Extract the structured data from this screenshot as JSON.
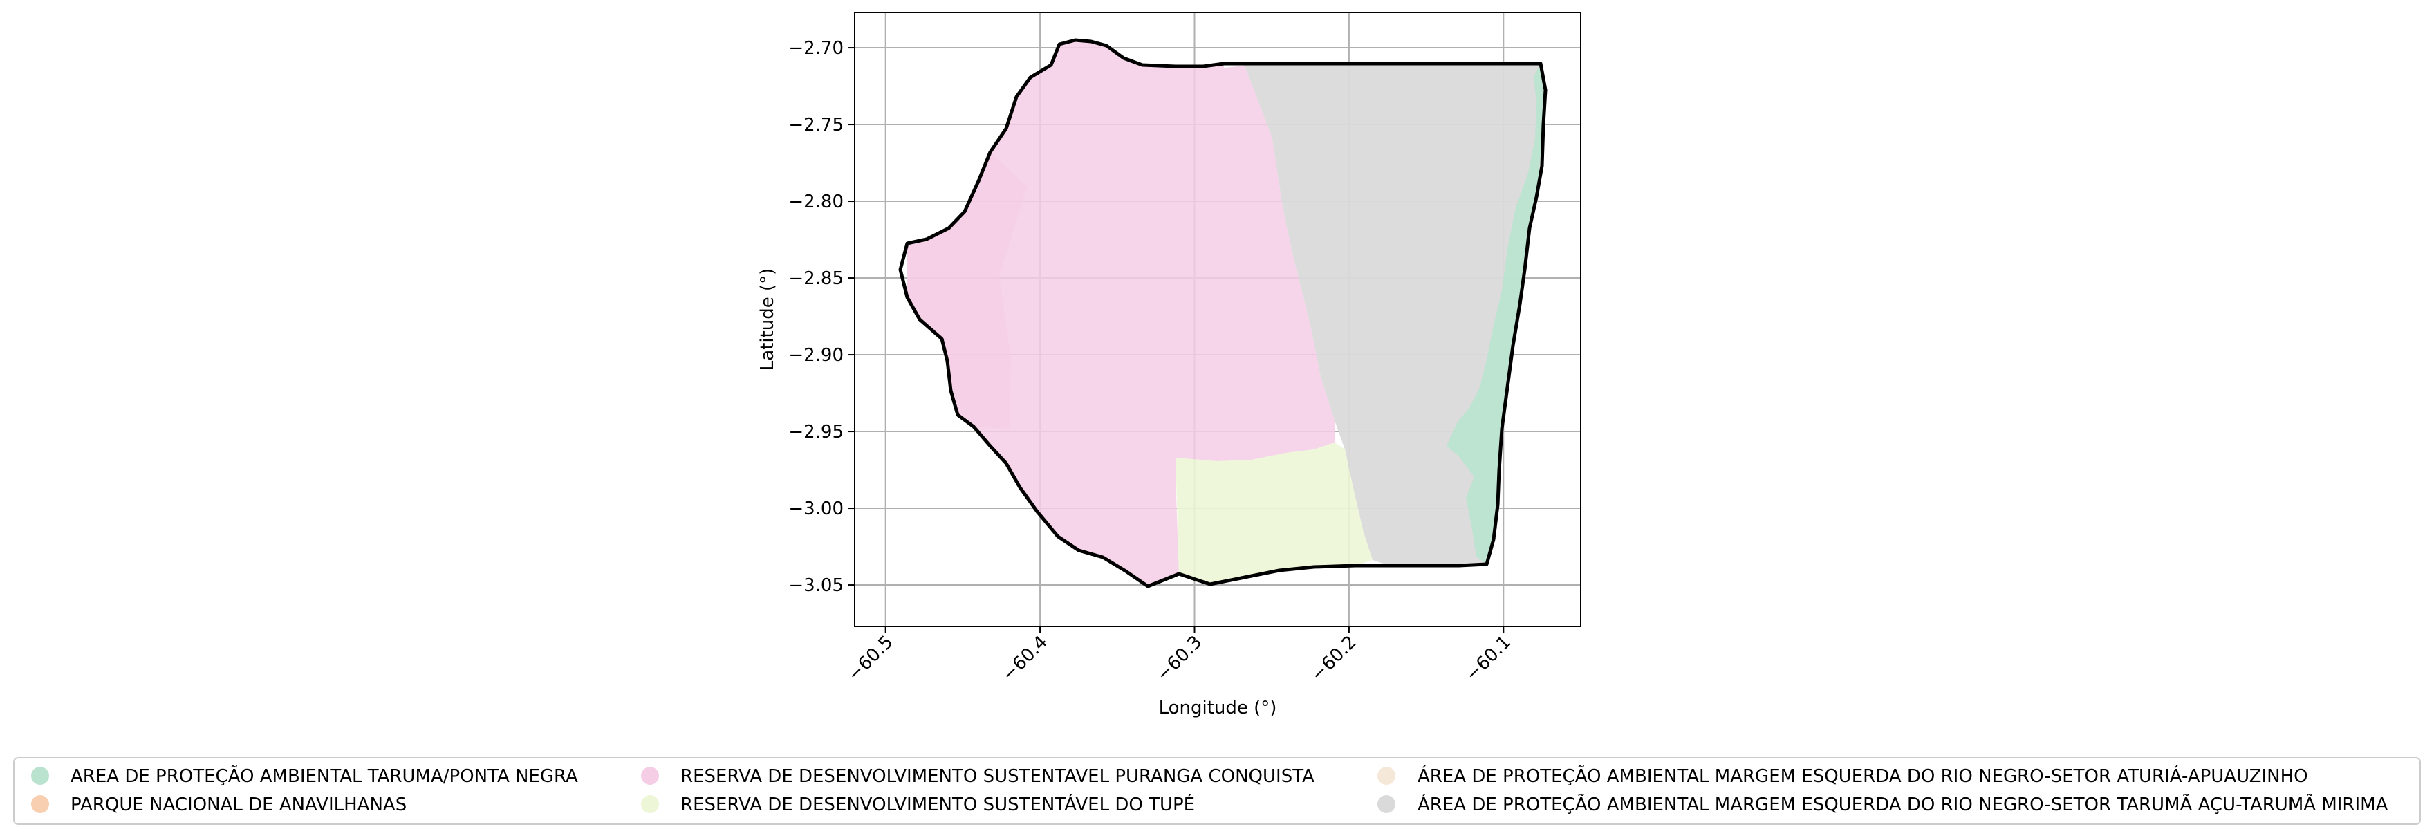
{
  "map": {
    "xlabel": "Longitude (°)",
    "ylabel": "Latitude (°)",
    "xlim": [
      -60.52,
      -60.05
    ],
    "ylim": [
      -3.077,
      -2.677
    ],
    "x_ticks": [
      {
        "value": -60.5,
        "label": "−60.5"
      },
      {
        "value": -60.4,
        "label": "−60.4"
      },
      {
        "value": -60.3,
        "label": "−60.3"
      },
      {
        "value": -60.2,
        "label": "−60.2"
      },
      {
        "value": -60.1,
        "label": "−60.1"
      }
    ],
    "y_ticks": [
      {
        "value": -2.7,
        "label": "−2.70"
      },
      {
        "value": -2.75,
        "label": "−2.75"
      },
      {
        "value": -2.8,
        "label": "−2.80"
      },
      {
        "value": -2.85,
        "label": "−2.85"
      },
      {
        "value": -2.9,
        "label": "−2.90"
      },
      {
        "value": -2.95,
        "label": "−2.95"
      },
      {
        "value": -3.0,
        "label": "−3.00"
      },
      {
        "value": -3.05,
        "label": "−3.05"
      }
    ],
    "grid": true,
    "boundary_color": "#000000",
    "legend_placement": "bottom"
  },
  "legend": {
    "items": [
      {
        "label": "AREA DE PROTEÇÃO AMBIENTAL TARUMA/PONTA NEGRA",
        "color": "#b9e3cf"
      },
      {
        "label": "PARQUE NACIONAL DE ANAVILHANAS",
        "color": "#f8cfb1"
      },
      {
        "label": "RESERVA DE DESENVOLVIMENTO SUSTENTAVEL PURANGA CONQUISTA",
        "color": "#f5cde5"
      },
      {
        "label": "RESERVA DE DESENVOLVIMENTO SUSTENTÁVEL DO TUPÉ",
        "color": "#edf6d6"
      },
      {
        "label": "ÁREA DE PROTEÇÃO AMBIENTAL MARGEM ESQUERDA DO RIO NEGRO-SETOR ATURIÁ-APUAUZINHO",
        "color": "#f6e8d8"
      },
      {
        "label": "ÁREA DE PROTEÇÃO AMBIENTAL MARGEM ESQUERDA DO RIO NEGRO-SETOR TARUMÃ AÇU-TARUMÃ MIRIMA",
        "color": "#dadada"
      }
    ]
  }
}
